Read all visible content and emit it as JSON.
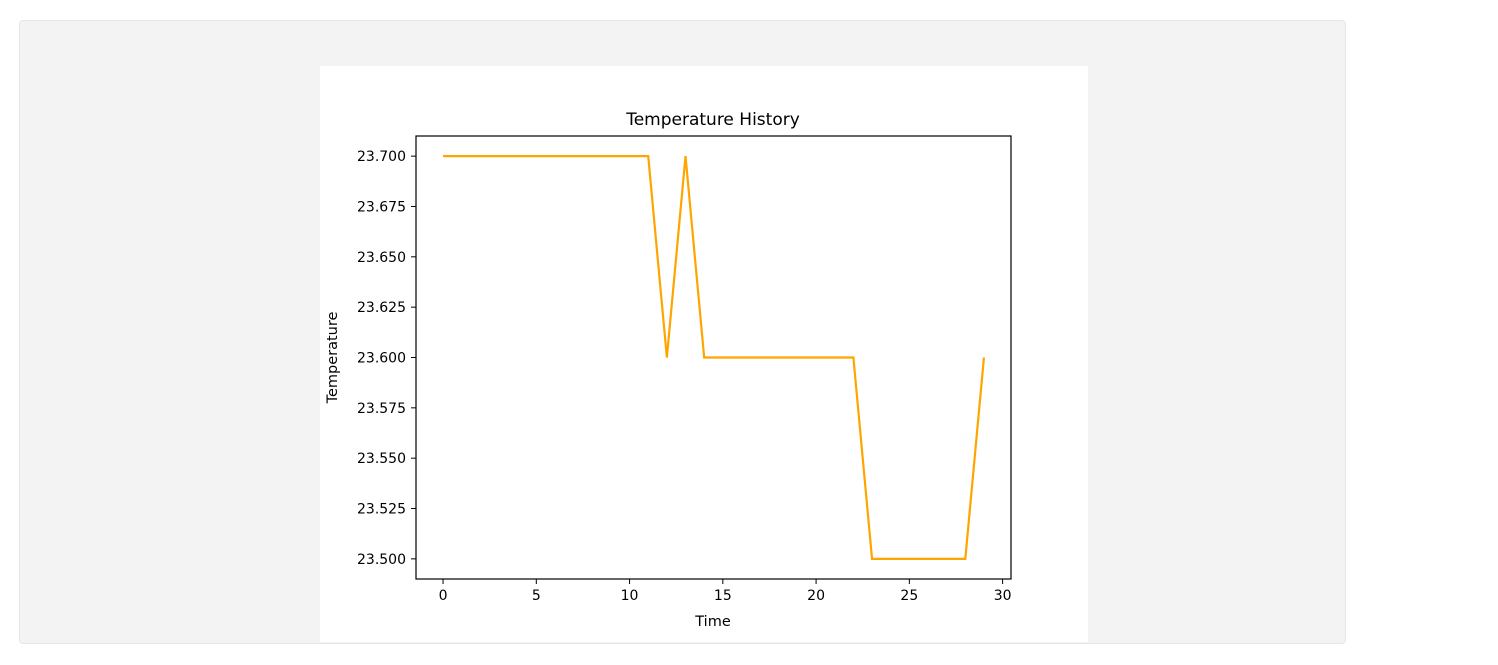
{
  "chart_data": {
    "type": "line",
    "title": "Temperature History",
    "xlabel": "Time",
    "ylabel": "Temperature",
    "xlim": [
      -1.45,
      30.45
    ],
    "ylim": [
      23.49,
      23.71
    ],
    "x_ticks": [
      0,
      5,
      10,
      15,
      20,
      25,
      30
    ],
    "y_ticks": [
      23.5,
      23.525,
      23.55,
      23.575,
      23.6,
      23.625,
      23.65,
      23.675,
      23.7
    ],
    "y_tick_labels": [
      "23.500",
      "23.525",
      "23.550",
      "23.575",
      "23.600",
      "23.625",
      "23.650",
      "23.675",
      "23.700"
    ],
    "grid": false,
    "series": [
      {
        "color": "#ffa500",
        "x": [
          0,
          1,
          2,
          3,
          4,
          5,
          6,
          7,
          8,
          9,
          10,
          11,
          12,
          13,
          14,
          15,
          16,
          17,
          18,
          19,
          20,
          21,
          22,
          23,
          24,
          25,
          26,
          27,
          28,
          29
        ],
        "values": [
          23.7,
          23.7,
          23.7,
          23.7,
          23.7,
          23.7,
          23.7,
          23.7,
          23.7,
          23.7,
          23.7,
          23.7,
          23.6,
          23.7,
          23.6,
          23.6,
          23.6,
          23.6,
          23.6,
          23.6,
          23.6,
          23.6,
          23.6,
          23.5,
          23.5,
          23.5,
          23.5,
          23.5,
          23.5,
          23.6
        ]
      }
    ]
  }
}
